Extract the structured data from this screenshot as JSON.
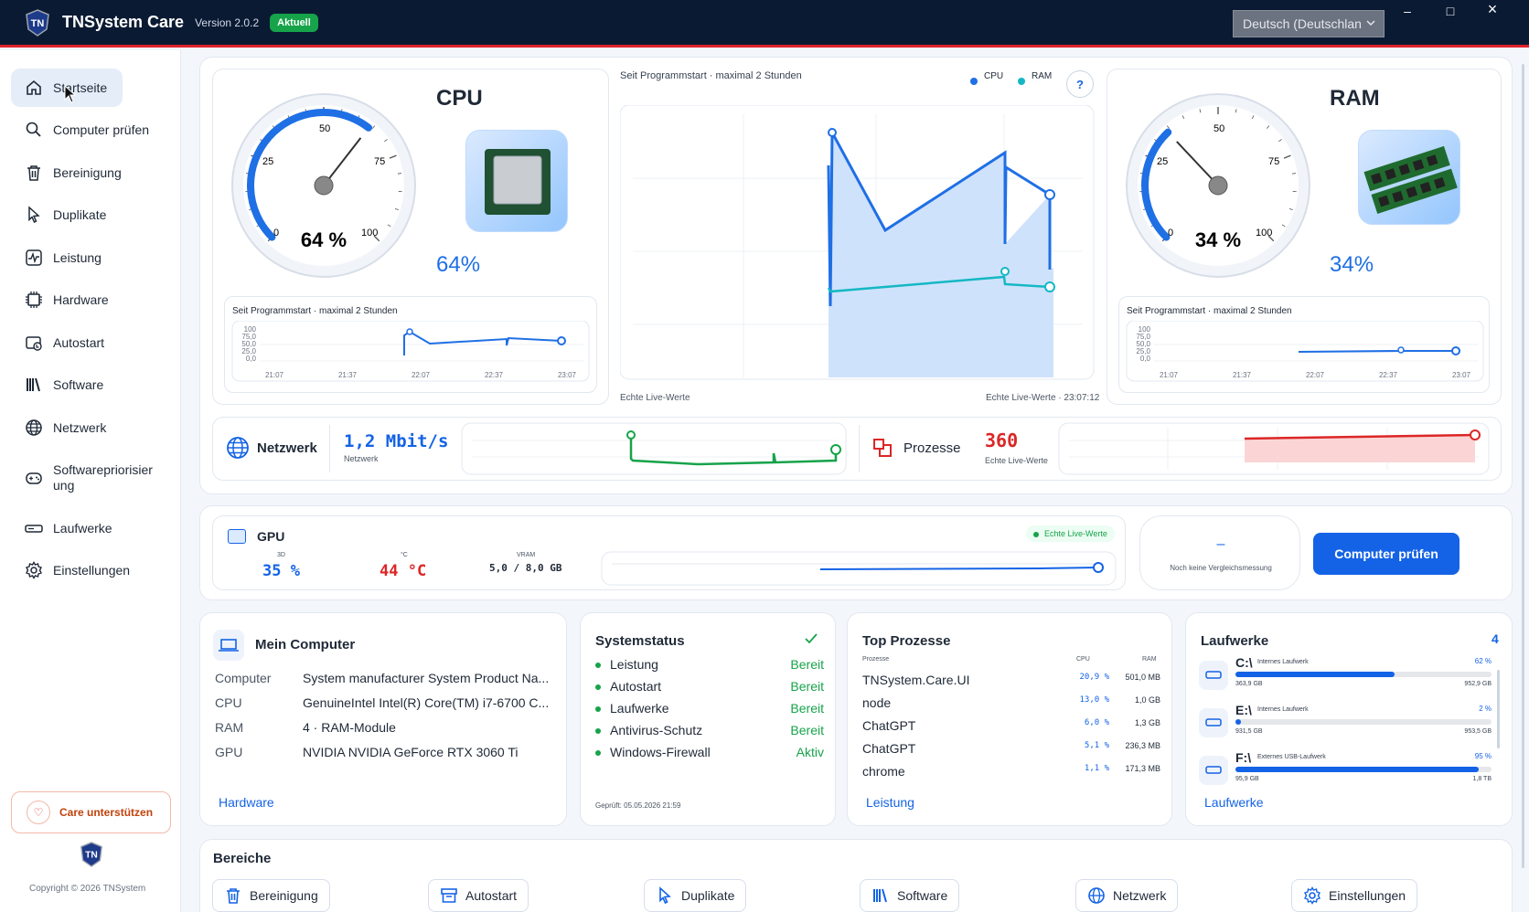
{
  "app": {
    "title": "TNSystem Care",
    "version": "Version 2.0.2",
    "status_badge": "Aktuell",
    "language": "Deutsch (Deutschlan",
    "window": {
      "minimize": "–",
      "maximize": "□",
      "close": "×"
    }
  },
  "sidebar": {
    "items": [
      {
        "label": "Startseite",
        "icon": "home-icon"
      },
      {
        "label": "Computer prüfen",
        "icon": "search-icon"
      },
      {
        "label": "Bereinigung",
        "icon": "trash-icon"
      },
      {
        "label": "Duplikate",
        "icon": "cursor-icon"
      },
      {
        "label": "Leistung",
        "icon": "activity-icon"
      },
      {
        "label": "Hardware",
        "icon": "chip-icon"
      },
      {
        "label": "Autostart",
        "icon": "autostart-icon"
      },
      {
        "label": "Software",
        "icon": "library-icon"
      },
      {
        "label": "Netzwerk",
        "icon": "globe-icon"
      },
      {
        "label": "Softwarepriorisier ung",
        "icon": "gamepad-icon"
      },
      {
        "label": "Laufwerke",
        "icon": "drive-icon"
      },
      {
        "label": "Einstellungen",
        "icon": "gear-icon"
      }
    ],
    "support_label": "Care unterstützen",
    "copyright": "Copyright © 2026 TNSystem"
  },
  "cpu": {
    "title": "CPU",
    "gauge_value": "64 %",
    "percent": "64%",
    "value": 64,
    "history_caption": "Seit Programmstart · maximal 2 Stunden",
    "gauge_ticks": [
      "0",
      "25",
      "50",
      "75",
      "100"
    ]
  },
  "ram": {
    "title": "RAM",
    "gauge_value": "34 %",
    "percent": "34%",
    "value": 34,
    "history_caption": "Seit Programmstart · maximal 2 Stunden",
    "gauge_ticks": [
      "0",
      "25",
      "50",
      "75",
      "100"
    ]
  },
  "mini_chart": {
    "y_ticks": [
      "100",
      "75,0",
      "50,0",
      "25,0",
      "0,0"
    ],
    "x_ticks": [
      "21:07",
      "21:37",
      "22:07",
      "22:37",
      "23:07"
    ]
  },
  "main_chart": {
    "caption": "Seit Programmstart · maximal 2 Stunden",
    "legend": [
      "CPU",
      "RAM"
    ],
    "help": "?",
    "footer_left": "Echte Live-Werte",
    "footer_right": "Echte Live-Werte · 23:07:12"
  },
  "network": {
    "label": "Netzwerk",
    "value": "1,2 Mbit/s",
    "sublabel": "Netzwerk"
  },
  "processes": {
    "label": "Prozesse",
    "value": "360",
    "sublabel": "Echte Live-Werte"
  },
  "gpu": {
    "title": "GPU",
    "live_badge": "Echte Live-Werte",
    "d3_label": "3D",
    "d3_value": "35 %",
    "temp_label": "°C",
    "temp_value": "44 °C",
    "vram_label": "VRAM",
    "vram_value": "5,0 / 8,0 GB",
    "compare_value": "–",
    "compare_label": "Noch keine Vergleichsmessung",
    "check_button": "Computer prüfen"
  },
  "my_computer": {
    "title": "Mein Computer",
    "rows": [
      {
        "key": "Computer",
        "value": "System manufacturer System Product Na..."
      },
      {
        "key": "CPU",
        "value": "GenuineIntel Intel(R) Core(TM) i7-6700 C..."
      },
      {
        "key": "RAM",
        "value": "4 · RAM-Module"
      },
      {
        "key": "GPU",
        "value": "NVIDIA NVIDIA GeForce RTX 3060 Ti"
      }
    ],
    "link": "Hardware"
  },
  "system_status": {
    "title": "Systemstatus",
    "items": [
      {
        "label": "Leistung",
        "status": "Bereit"
      },
      {
        "label": "Autostart",
        "status": "Bereit"
      },
      {
        "label": "Laufwerke",
        "status": "Bereit"
      },
      {
        "label": "Antivirus-Schutz",
        "status": "Bereit"
      },
      {
        "label": "Windows-Firewall",
        "status": "Aktiv"
      }
    ],
    "checked": "Geprüft: 05.05.2026 21:59"
  },
  "top_processes": {
    "title": "Top Prozesse",
    "headers": [
      "Prozesse",
      "CPU",
      "RAM"
    ],
    "rows": [
      {
        "name": "TNSystem.Care.UI",
        "cpu": "20,9 %",
        "ram": "501,0 MB"
      },
      {
        "name": "node",
        "cpu": "13,0 %",
        "ram": "1,0 GB"
      },
      {
        "name": "ChatGPT",
        "cpu": "6,0 %",
        "ram": "1,3 GB"
      },
      {
        "name": "ChatGPT",
        "cpu": "5,1 %",
        "ram": "236,3 MB"
      },
      {
        "name": "chrome",
        "cpu": "1,1 %",
        "ram": "171,3 MB"
      }
    ],
    "link": "Leistung"
  },
  "drives": {
    "title": "Laufwerke",
    "count": "4",
    "items": [
      {
        "letter": "C:\\",
        "type": "Internes Laufwerk",
        "percent": "62 %",
        "fill": 62,
        "free": "363,9 GB",
        "total": "952,9 GB"
      },
      {
        "letter": "E:\\",
        "type": "Internes Laufwerk",
        "percent": "2 %",
        "fill": 2,
        "free": "931,5 GB",
        "total": "953,5 GB"
      },
      {
        "letter": "F:\\",
        "type": "Externes USB-Laufwerk",
        "percent": "95 %",
        "fill": 95,
        "free": "95,9 GB",
        "total": "1,8 TB"
      }
    ],
    "link": "Laufwerke"
  },
  "areas": {
    "title": "Bereiche",
    "items": [
      {
        "label": "Bereinigung",
        "icon": "trash-icon"
      },
      {
        "label": "Autostart",
        "icon": "archive-icon"
      },
      {
        "label": "Duplikate",
        "icon": "cursor-icon"
      },
      {
        "label": "Software",
        "icon": "library-icon"
      },
      {
        "label": "Netzwerk",
        "icon": "globe-icon"
      },
      {
        "label": "Einstellungen",
        "icon": "gear-icon"
      }
    ]
  },
  "colors": {
    "accent": "#1463e6",
    "cpu": "#1f6fe5",
    "ram": "#14b8c4",
    "network": "#16a34a",
    "processes": "#dc2626"
  }
}
